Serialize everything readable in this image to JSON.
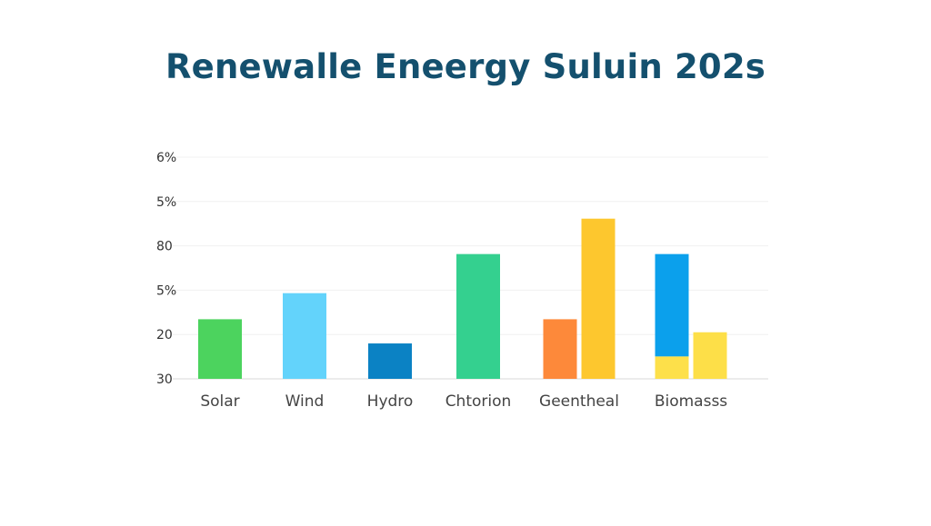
{
  "chart_data": {
    "type": "bar",
    "title": "Renewalle Eneergy Suluin 202s",
    "y_tick_labels": [
      "30",
      "20",
      "5%",
      "80",
      "5%",
      "6%"
    ],
    "grid": true,
    "legend": "none",
    "categories": [
      "Solar",
      "Wind",
      "Hydro",
      "Chtorion",
      "Geentheal",
      "Biomasss"
    ],
    "ylim": [
      0,
      5
    ],
    "bars": [
      {
        "category": "Solar",
        "slot": 0,
        "value": 1.6,
        "color": "#4cd35e"
      },
      {
        "category": "Wind",
        "slot": 0,
        "value": 2.3,
        "color": "#63d3fb"
      },
      {
        "category": "Hydro",
        "slot": 0,
        "value": 0.95,
        "color": "#0b82c4"
      },
      {
        "category": "Chtorion",
        "slot": 0,
        "value": 3.35,
        "color": "#34d08f"
      },
      {
        "category": "Geentheal",
        "slot": -1,
        "value": 1.6,
        "color": "#fd893a"
      },
      {
        "category": "Geentheal",
        "slot": 1,
        "value": 4.3,
        "color": "#fdc72e"
      },
      {
        "category": "Biomasss",
        "slot": -1,
        "value": 2.75,
        "base": 0.6,
        "color": "#0ba0ec"
      },
      {
        "category": "Biomasss",
        "slot": -1,
        "value": 0.6,
        "color": "#fde04a"
      },
      {
        "category": "Biomasss",
        "slot": 1,
        "value": 1.25,
        "color": "#fddf48"
      }
    ]
  }
}
